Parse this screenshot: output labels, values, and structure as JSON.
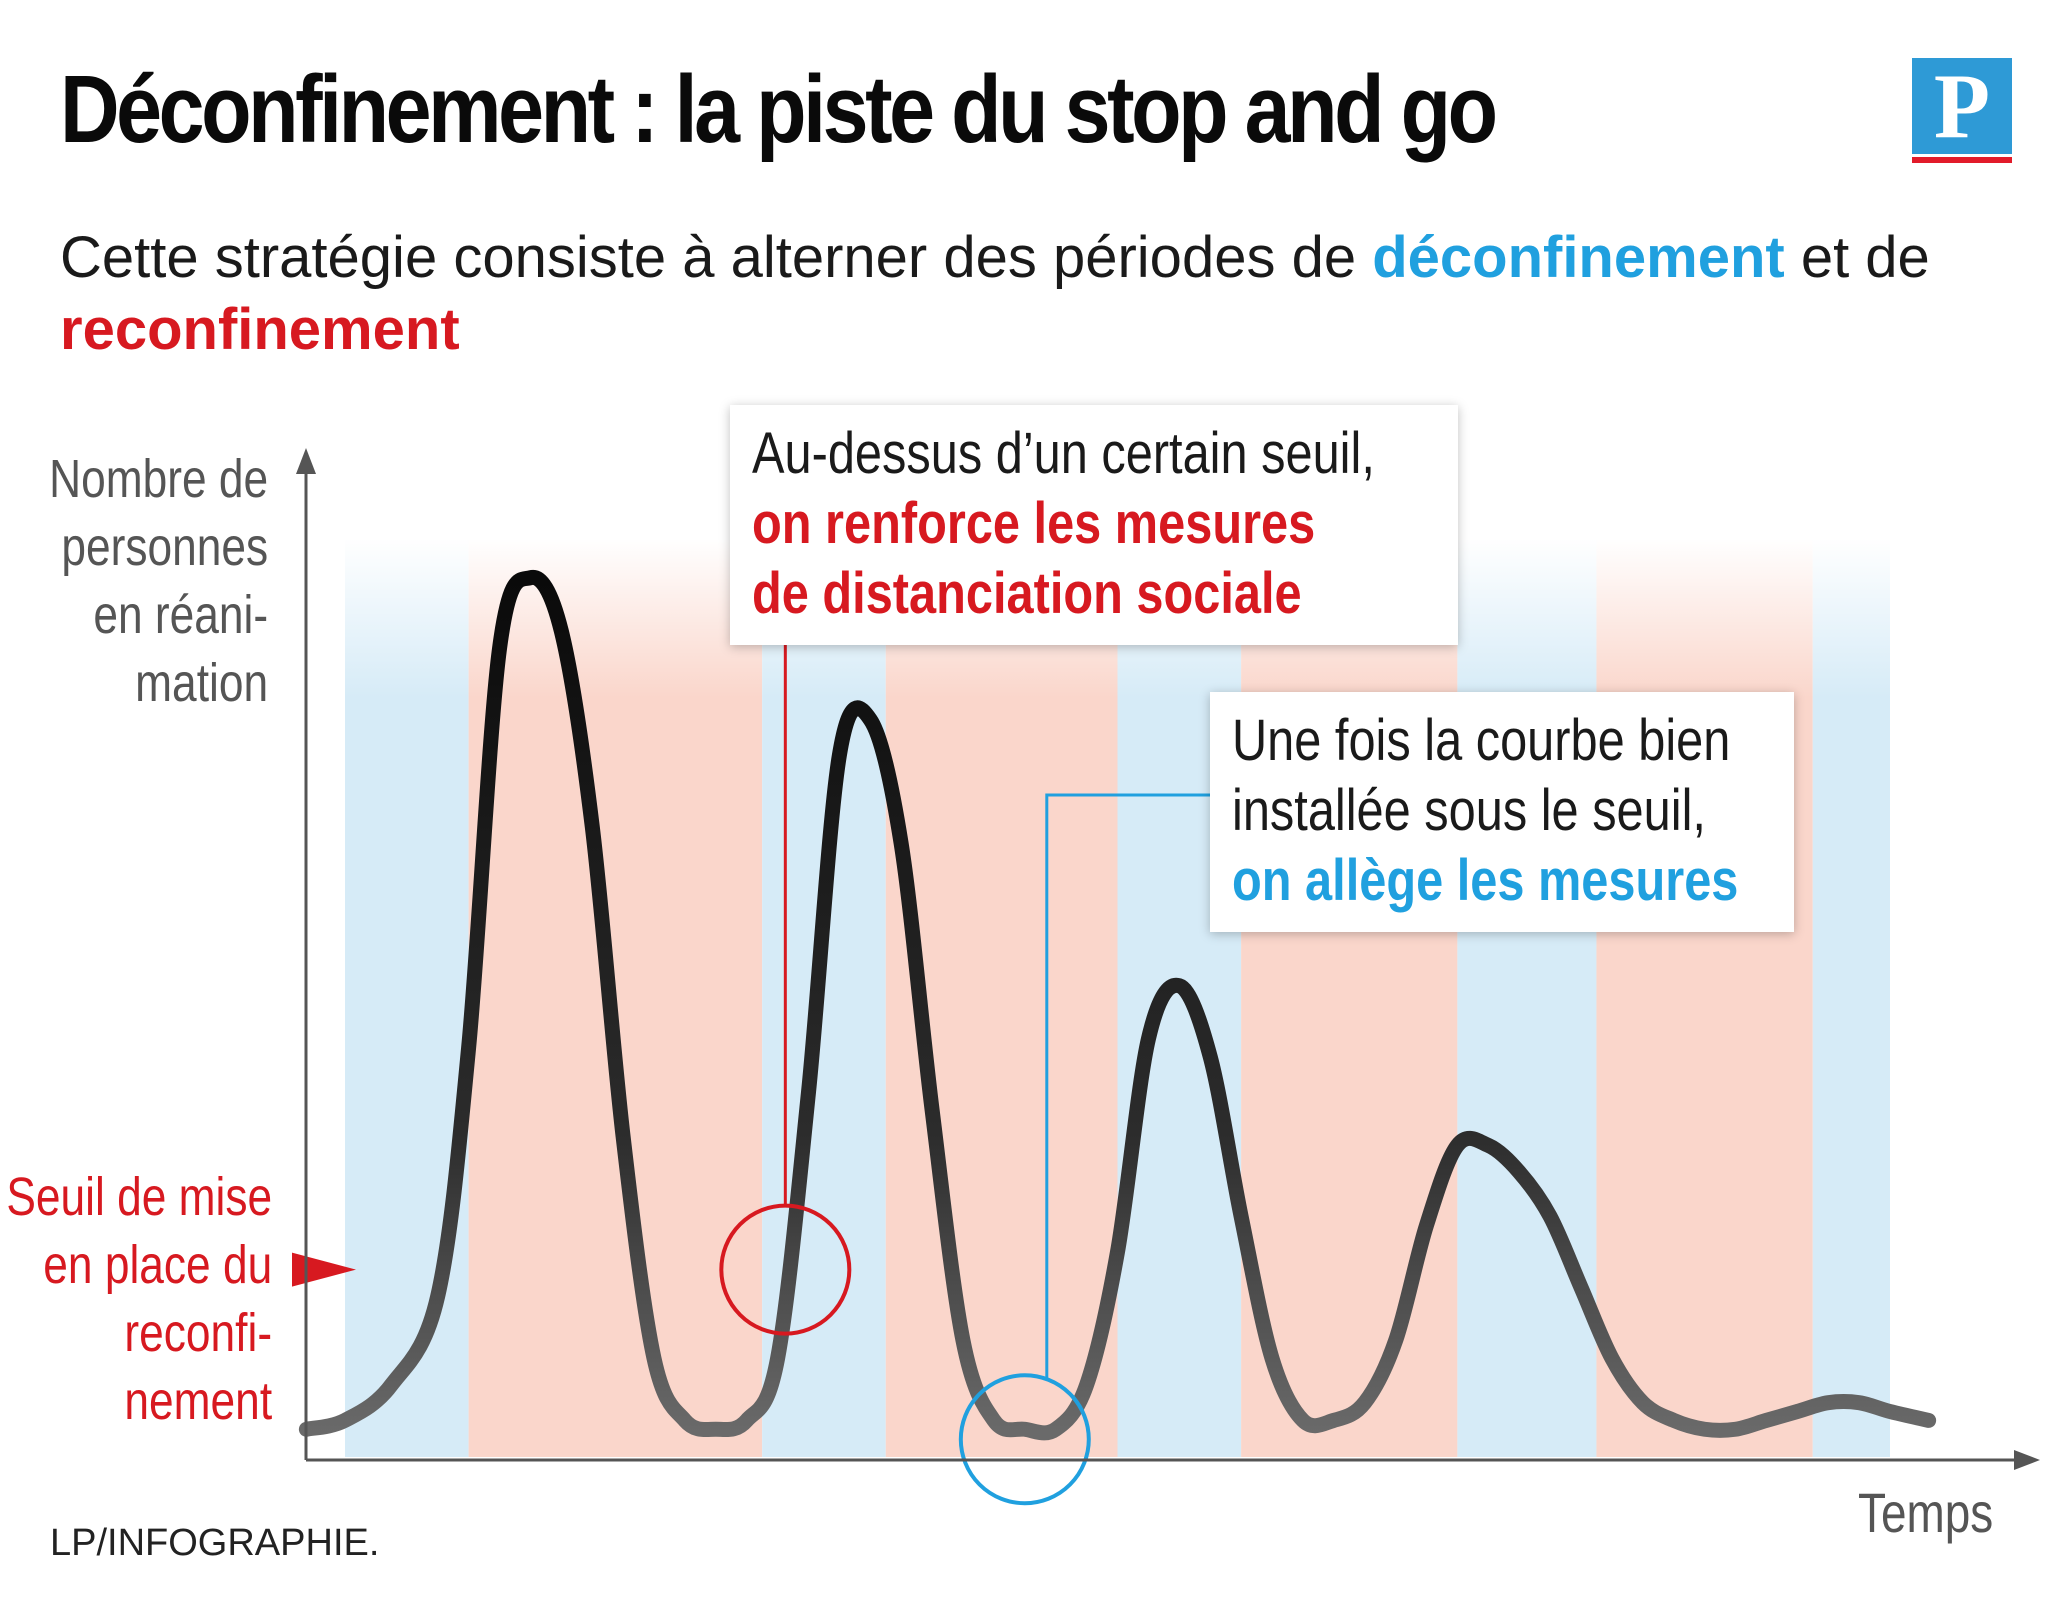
{
  "title": "Déconfinement : la piste du stop and go",
  "logo": {
    "letter": "P"
  },
  "subtitle": {
    "before": "Cette stratégie consiste à alterner des périodes de ",
    "highlight_blue": "déconfinement",
    "middle": " et de ",
    "highlight_red": "reconfinement"
  },
  "chart_data": {
    "type": "line",
    "ylabel_lines": [
      "Nombre de",
      "personnes",
      "en réani-",
      "mation"
    ],
    "xlabel": "Temps",
    "threshold_label_lines": [
      "Seuil de mise",
      "en place du",
      "reconfi-",
      "nement"
    ],
    "threshold": 20,
    "xlim": [
      0,
      100
    ],
    "ylim": [
      0,
      100
    ],
    "phases": [
      {
        "type": "deconfinement",
        "start": 0,
        "end": 8
      },
      {
        "type": "reconfinement",
        "start": 8,
        "end": 27
      },
      {
        "type": "deconfinement",
        "start": 27,
        "end": 35
      },
      {
        "type": "reconfinement",
        "start": 35,
        "end": 50
      },
      {
        "type": "deconfinement",
        "start": 50,
        "end": 58
      },
      {
        "type": "reconfinement",
        "start": 58,
        "end": 72
      },
      {
        "type": "deconfinement",
        "start": 72,
        "end": 81
      },
      {
        "type": "reconfinement",
        "start": 81,
        "end": 95
      },
      {
        "type": "deconfinement",
        "start": 95,
        "end": 103
      }
    ],
    "series": [
      {
        "x": [
          -2.5,
          0,
          3,
          6,
          8,
          10,
          12,
          14,
          16,
          18,
          20,
          22,
          24,
          26,
          28,
          30,
          32,
          34,
          36,
          38,
          40,
          42,
          44,
          46,
          48,
          50,
          52,
          54,
          56,
          58,
          60,
          62,
          64,
          66,
          68,
          70,
          72,
          74,
          76,
          78,
          80,
          82,
          84,
          86,
          88,
          90,
          92,
          94,
          96,
          98,
          100,
          102.5
        ],
        "y": [
          2,
          3,
          7,
          17,
          45,
          90,
          98,
          92,
          70,
          35,
          10,
          3,
          2,
          3,
          10,
          40,
          78,
          82,
          68,
          38,
          12,
          3,
          2,
          2,
          7,
          22,
          46,
          52,
          44,
          26,
          10,
          3,
          3,
          5,
          12,
          25,
          34,
          34,
          31,
          26,
          18,
          10,
          5,
          3,
          2,
          2,
          3,
          4,
          5,
          5,
          4,
          3
        ]
      }
    ]
  },
  "callouts": {
    "top": {
      "line1": "Au-dessus d’un certain seuil,",
      "line2": "on renforce les mesures",
      "line3": "de distanciation sociale"
    },
    "bottom": {
      "line1": "Une fois la courbe bien",
      "line2": "installée sous le seuil,",
      "line3": "on allège les mesures"
    }
  },
  "colors": {
    "deconfinement": "#d6ebf7",
    "reconfinement": "#fad6cb",
    "threshold": "#d71920",
    "curve": "#111111",
    "blue_accent": "#20a0df",
    "axis": "#555555"
  },
  "credit": "LP/INFOGRAPHIE."
}
